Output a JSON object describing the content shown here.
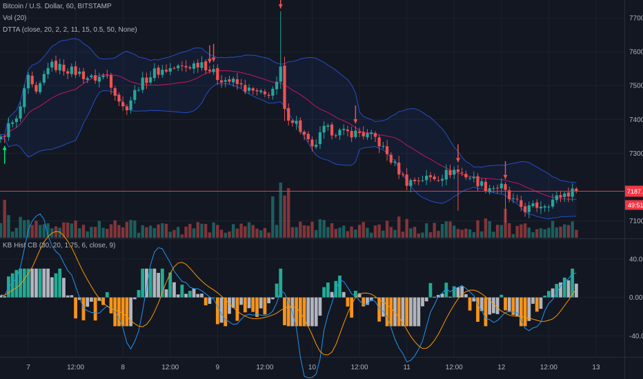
{
  "legend": {
    "symbol": "Bitcoin / U.S. Dollar, 60, BITSTAMP",
    "volume": "Vol (20)",
    "dtta": "DTTA (close, 20, 2, 2, 11, 15, 0.5, 50, None)",
    "kb": "KB Hist CB (30, 20, 1.75, 6, close, 9)"
  },
  "price_axis": {
    "ticks": [
      "7700.00",
      "7600.00",
      "7500.00",
      "7400.00",
      "7300.00",
      "7100.00"
    ],
    "tick_values": [
      7700,
      7600,
      7500,
      7400,
      7300,
      7100
    ],
    "range": [
      7050,
      7745
    ],
    "last_price": "7187.64",
    "last_price_value": 7187.64,
    "countdown": "49:51"
  },
  "osc_axis": {
    "ticks": [
      "40.00",
      "0.00",
      "-40.00"
    ],
    "tick_values": [
      40,
      0,
      -40
    ],
    "range": [
      -62,
      60
    ]
  },
  "time_axis": {
    "labels": [
      "7",
      "12:00",
      "8",
      "12:00",
      "9",
      "12:00",
      "10",
      "12:00",
      "11",
      "12:00",
      "12",
      "12:00",
      "13"
    ],
    "positions_hours": [
      0,
      12,
      24,
      36,
      48,
      60,
      72,
      84,
      96,
      108,
      120,
      132,
      144
    ]
  },
  "colors": {
    "up": "#26a69a",
    "down": "#ef5350",
    "basis": "#c2185b",
    "band": "#2962ff",
    "hist_up": "#22ab94",
    "hist_down": "#f7931a",
    "hist_neutral": "#b2b5be",
    "osc_fast": "#2196f3",
    "osc_slow": "#ff9800",
    "price_line": "#f23645"
  },
  "chart_data": {
    "type": "candlestick",
    "anchors": [
      [
        -7,
        7340
      ],
      [
        -5,
        7380
      ],
      [
        -3,
        7395
      ],
      [
        0,
        7520
      ],
      [
        2,
        7470
      ],
      [
        5,
        7560
      ],
      [
        8,
        7555
      ],
      [
        12,
        7540
      ],
      [
        16,
        7520
      ],
      [
        20,
        7530
      ],
      [
        24,
        7435
      ],
      [
        25,
        7440
      ],
      [
        28,
        7500
      ],
      [
        32,
        7540
      ],
      [
        36,
        7550
      ],
      [
        40,
        7555
      ],
      [
        44,
        7570
      ],
      [
        48,
        7525
      ],
      [
        52,
        7510
      ],
      [
        56,
        7485
      ],
      [
        60,
        7470
      ],
      [
        63,
        7500
      ],
      [
        64,
        7550
      ],
      [
        65,
        7420
      ],
      [
        68,
        7390
      ],
      [
        72,
        7310
      ],
      [
        75,
        7370
      ],
      [
        80,
        7360
      ],
      [
        84,
        7360
      ],
      [
        88,
        7345
      ],
      [
        92,
        7280
      ],
      [
        96,
        7215
      ],
      [
        100,
        7225
      ],
      [
        104,
        7230
      ],
      [
        108,
        7250
      ],
      [
        112,
        7230
      ],
      [
        116,
        7200
      ],
      [
        120,
        7200
      ],
      [
        122,
        7165
      ],
      [
        126,
        7135
      ],
      [
        128,
        7140
      ],
      [
        132,
        7155
      ],
      [
        136,
        7180
      ],
      [
        138,
        7185
      ],
      [
        139,
        7187.64
      ]
    ],
    "arrows_down_hours": [
      64,
      46,
      47,
      83,
      109,
      121
    ],
    "arrow_up_hours": [
      -6
    ]
  }
}
